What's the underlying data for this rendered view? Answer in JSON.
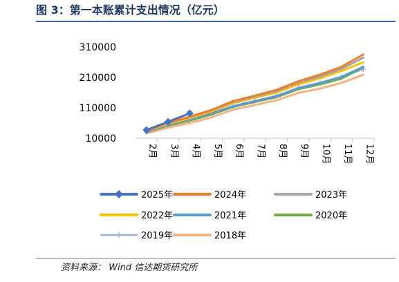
{
  "figure": {
    "title": "图 3：第一本账累计支出情况（亿元）",
    "source": "资料来源：   Wind  信达期货研究所"
  },
  "chart_data": {
    "type": "line",
    "title": "",
    "xlabel": "",
    "ylabel": "",
    "categories": [
      "2月",
      "3月",
      "4月",
      "5月",
      "6月",
      "7月",
      "8月",
      "9月",
      "10月",
      "11月",
      "12月"
    ],
    "yticks": [
      10000,
      110000,
      210000,
      310000
    ],
    "ylim": [
      10000,
      310000
    ],
    "grid": false,
    "legend_position": "bottom",
    "series": [
      {
        "name": "2025年",
        "color": "#4472c4",
        "marker": "diamond",
        "values": [
          37000,
          64000,
          92000,
          null,
          null,
          null,
          null,
          null,
          null,
          null,
          null
        ]
      },
      {
        "name": "2024年",
        "color": "#ed7d31",
        "marker": "none",
        "values": [
          34000,
          61000,
          81000,
          103000,
          132000,
          150000,
          169000,
          197000,
          219000,
          245000,
          285000
        ]
      },
      {
        "name": "2023年",
        "color": "#a5a5a5",
        "marker": "none",
        "values": [
          35000,
          60000,
          80000,
          102000,
          129000,
          147000,
          165000,
          193000,
          213000,
          238000,
          275000
        ]
      },
      {
        "name": "2022年",
        "color": "#ffc000",
        "marker": "none",
        "values": [
          33000,
          57000,
          76000,
          98000,
          125000,
          143000,
          160000,
          187000,
          207000,
          231000,
          260000
        ]
      },
      {
        "name": "2021年",
        "color": "#5b9bd5",
        "marker": "none",
        "values": [
          31000,
          54000,
          72000,
          92000,
          115000,
          132000,
          148000,
          174000,
          191000,
          212000,
          245000
        ]
      },
      {
        "name": "2020年",
        "color": "#70ad47",
        "marker": "none",
        "values": [
          30000,
          52000,
          68000,
          88000,
          113000,
          129000,
          145000,
          171000,
          187000,
          206000,
          243000
        ]
      },
      {
        "name": "2019年",
        "color": "#9dacd9",
        "marker": "plus",
        "values": [
          32000,
          54000,
          71000,
          91000,
          116000,
          133000,
          150000,
          176000,
          193000,
          212000,
          237000
        ]
      },
      {
        "name": "2018年",
        "color": "#f4b183",
        "marker": "none",
        "values": [
          26000,
          45000,
          60000,
          79000,
          104000,
          119000,
          135000,
          159000,
          173000,
          192000,
          219000
        ]
      }
    ]
  }
}
